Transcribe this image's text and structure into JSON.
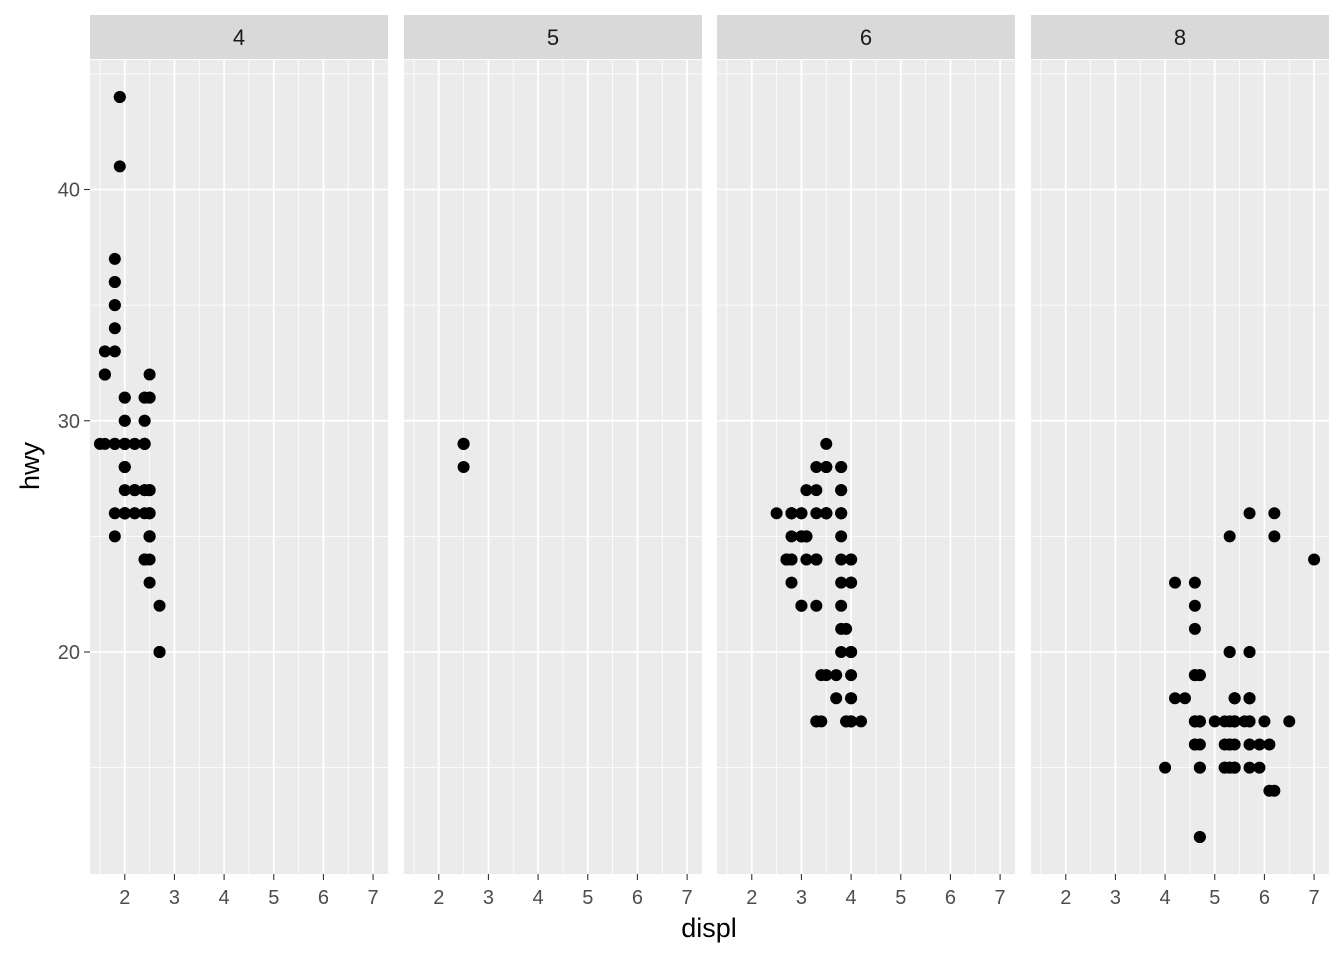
{
  "chart_data": {
    "type": "scatter",
    "facet_variable": "cyl",
    "facet_labels": [
      "4",
      "5",
      "6",
      "8"
    ],
    "xlabel": "displ",
    "ylabel": "hwy",
    "xlim": [
      1.3,
      7.3
    ],
    "ylim": [
      10.4,
      45.6
    ],
    "x_ticks": [
      2,
      3,
      4,
      5,
      6,
      7
    ],
    "y_ticks": [
      20,
      30,
      40
    ],
    "grid": true,
    "colors": {
      "panel_bg": "#EBEBEB",
      "strip_bg": "#D9D9D9",
      "grid": "#FFFFFF",
      "point": "#000000",
      "tick": "#333333"
    },
    "panels": [
      {
        "label": "4",
        "points": [
          [
            1.8,
            29
          ],
          [
            1.8,
            29
          ],
          [
            2.0,
            31
          ],
          [
            2.0,
            30
          ],
          [
            1.8,
            26
          ],
          [
            1.8,
            25
          ],
          [
            2.0,
            28
          ],
          [
            2.0,
            28
          ],
          [
            2.0,
            26
          ],
          [
            2.4,
            30
          ],
          [
            2.4,
            27
          ],
          [
            1.6,
            33
          ],
          [
            1.6,
            32
          ],
          [
            1.6,
            32
          ],
          [
            1.6,
            29
          ],
          [
            1.6,
            32
          ],
          [
            1.8,
            34
          ],
          [
            1.8,
            36
          ],
          [
            1.8,
            36
          ],
          [
            2.0,
            29
          ],
          [
            2.0,
            26
          ],
          [
            1.9,
            44
          ],
          [
            1.9,
            41
          ],
          [
            2.0,
            29
          ],
          [
            2.0,
            26
          ],
          [
            1.9,
            44
          ],
          [
            2.0,
            27
          ],
          [
            2.2,
            27
          ],
          [
            2.2,
            29
          ],
          [
            2.4,
            24
          ],
          [
            2.4,
            24
          ],
          [
            2.7,
            22
          ],
          [
            2.7,
            20
          ],
          [
            2.7,
            20
          ],
          [
            2.7,
            20
          ],
          [
            2.5,
            23
          ],
          [
            2.5,
            25
          ],
          [
            2.5,
            31
          ],
          [
            2.5,
            32
          ],
          [
            2.4,
            27
          ],
          [
            2.4,
            26
          ],
          [
            2.5,
            27
          ],
          [
            2.5,
            25
          ],
          [
            2.2,
            26
          ],
          [
            2.2,
            29
          ],
          [
            2.4,
            31
          ],
          [
            2.4,
            29
          ],
          [
            2.5,
            26
          ],
          [
            2.5,
            25
          ],
          [
            1.8,
            35
          ],
          [
            1.8,
            37
          ],
          [
            1.8,
            35
          ],
          [
            1.8,
            29
          ],
          [
            2.0,
            29
          ],
          [
            2.2,
            27
          ],
          [
            2.5,
            26
          ],
          [
            2.5,
            31
          ],
          [
            2.4,
            30
          ],
          [
            1.5,
            29
          ],
          [
            1.8,
            33
          ],
          [
            2.0,
            30
          ],
          [
            2.0,
            26
          ],
          [
            2.4,
            29
          ],
          [
            2.4,
            24
          ],
          [
            2.0,
            26
          ],
          [
            2.4,
            31
          ],
          [
            2.5,
            27
          ],
          [
            2.5,
            24
          ],
          [
            2.5,
            26
          ],
          [
            2.2,
            26
          ],
          [
            2.2,
            27
          ],
          [
            2.0,
            31
          ],
          [
            2.5,
            25
          ],
          [
            2.5,
            27
          ],
          [
            2.4,
            29
          ],
          [
            2.4,
            29
          ],
          [
            2.0,
            26
          ],
          [
            2.0,
            29
          ],
          [
            2.0,
            28
          ],
          [
            2.0,
            29
          ],
          [
            2.0,
            26
          ]
        ]
      },
      {
        "label": "5",
        "points": [
          [
            2.5,
            29
          ],
          [
            2.5,
            29
          ],
          [
            2.5,
            28
          ],
          [
            2.5,
            29
          ]
        ]
      },
      {
        "label": "6",
        "points": [
          [
            2.8,
            26
          ],
          [
            2.8,
            26
          ],
          [
            3.1,
            27
          ],
          [
            2.8,
            25
          ],
          [
            3.1,
            25
          ],
          [
            3.1,
            25
          ],
          [
            2.8,
            24
          ],
          [
            2.8,
            24
          ],
          [
            3.1,
            25
          ],
          [
            3.8,
            26
          ],
          [
            3.8,
            25
          ],
          [
            3.8,
            27
          ],
          [
            3.5,
            26
          ],
          [
            3.0,
            22
          ],
          [
            3.3,
            24
          ],
          [
            3.3,
            24
          ],
          [
            3.3,
            22
          ],
          [
            3.8,
            22
          ],
          [
            3.8,
            23
          ],
          [
            4.0,
            24
          ],
          [
            4.0,
            17
          ],
          [
            4.0,
            17
          ],
          [
            4.0,
            17
          ],
          [
            4.0,
            19
          ],
          [
            4.0,
            18
          ],
          [
            4.2,
            17
          ],
          [
            4.0,
            20
          ],
          [
            4.0,
            20
          ],
          [
            4.0,
            20
          ],
          [
            3.7,
            19
          ],
          [
            3.7,
            18
          ],
          [
            3.9,
            17
          ],
          [
            3.9,
            17
          ],
          [
            3.8,
            21
          ],
          [
            3.8,
            20
          ],
          [
            3.3,
            17
          ],
          [
            3.3,
            17
          ],
          [
            3.4,
            17
          ],
          [
            3.4,
            19
          ],
          [
            3.5,
            28
          ],
          [
            3.5,
            26
          ],
          [
            3.3,
            27
          ],
          [
            3.3,
            26
          ],
          [
            3.5,
            26
          ],
          [
            3.5,
            28
          ],
          [
            3.0,
            25
          ],
          [
            3.0,
            26
          ],
          [
            3.5,
            26
          ],
          [
            3.5,
            28
          ],
          [
            3.0,
            26
          ],
          [
            3.0,
            25
          ],
          [
            3.0,
            25
          ],
          [
            2.7,
            24
          ],
          [
            2.7,
            24
          ],
          [
            2.8,
            23
          ],
          [
            3.1,
            24
          ],
          [
            2.5,
            26
          ],
          [
            2.8,
            26
          ],
          [
            2.8,
            26
          ],
          [
            2.7,
            24
          ],
          [
            2.7,
            24
          ],
          [
            3.3,
            28
          ],
          [
            3.8,
            28
          ],
          [
            3.8,
            26
          ],
          [
            3.8,
            28
          ],
          [
            3.5,
            29
          ],
          [
            3.5,
            26
          ],
          [
            4.0,
            23
          ],
          [
            4.0,
            23
          ],
          [
            3.8,
            24
          ],
          [
            3.0,
            22
          ],
          [
            3.8,
            27
          ],
          [
            3.8,
            26
          ],
          [
            3.3,
            24
          ],
          [
            3.3,
            24
          ],
          [
            3.9,
            21
          ],
          [
            4.0,
            24
          ],
          [
            4.0,
            18
          ],
          [
            3.5,
            19
          ]
        ]
      },
      {
        "label": "8",
        "points": [
          [
            5.7,
            26
          ],
          [
            6.2,
            26
          ],
          [
            6.2,
            25
          ],
          [
            7.0,
            24
          ],
          [
            5.3,
            20
          ],
          [
            5.3,
            15
          ],
          [
            5.7,
            20
          ],
          [
            6.5,
            17
          ],
          [
            5.3,
            17
          ],
          [
            5.3,
            16
          ],
          [
            5.7,
            20
          ],
          [
            6.0,
            17
          ],
          [
            5.7,
            17
          ],
          [
            5.7,
            18
          ],
          [
            6.2,
            14
          ],
          [
            6.1,
            16
          ],
          [
            5.4,
            15
          ],
          [
            4.7,
            15
          ],
          [
            4.7,
            17
          ],
          [
            4.7,
            17
          ],
          [
            5.2,
            15
          ],
          [
            5.2,
            15
          ],
          [
            5.7,
            16
          ],
          [
            5.9,
            16
          ],
          [
            4.7,
            17
          ],
          [
            4.7,
            12
          ],
          [
            4.7,
            12
          ],
          [
            5.2,
            16
          ],
          [
            5.2,
            17
          ],
          [
            4.6,
            17
          ],
          [
            5.4,
            17
          ],
          [
            5.4,
            17
          ],
          [
            4.6,
            16
          ],
          [
            5.0,
            17
          ],
          [
            4.7,
            19
          ],
          [
            4.7,
            17
          ],
          [
            4.7,
            15
          ],
          [
            5.7,
            18
          ],
          [
            6.1,
            14
          ],
          [
            5.3,
            15
          ],
          [
            5.3,
            20
          ],
          [
            5.3,
            16
          ],
          [
            5.4,
            15
          ],
          [
            5.4,
            18
          ],
          [
            4.6,
            17
          ],
          [
            4.6,
            22
          ],
          [
            4.6,
            19
          ],
          [
            5.4,
            16
          ],
          [
            5.4,
            15
          ],
          [
            4.2,
            18
          ],
          [
            4.2,
            23
          ],
          [
            4.4,
            18
          ],
          [
            4.6,
            19
          ],
          [
            5.4,
            17
          ],
          [
            5.4,
            18
          ],
          [
            5.7,
            15
          ],
          [
            4.0,
            15
          ],
          [
            4.6,
            17
          ],
          [
            4.6,
            16
          ],
          [
            4.6,
            23
          ],
          [
            4.6,
            21
          ],
          [
            5.3,
            25
          ],
          [
            5.4,
            18
          ],
          [
            5.9,
            15
          ],
          [
            4.7,
            19
          ],
          [
            4.7,
            17
          ],
          [
            5.7,
            18
          ],
          [
            5.7,
            17
          ],
          [
            4.7,
            16
          ],
          [
            5.6,
            17
          ]
        ]
      }
    ]
  }
}
